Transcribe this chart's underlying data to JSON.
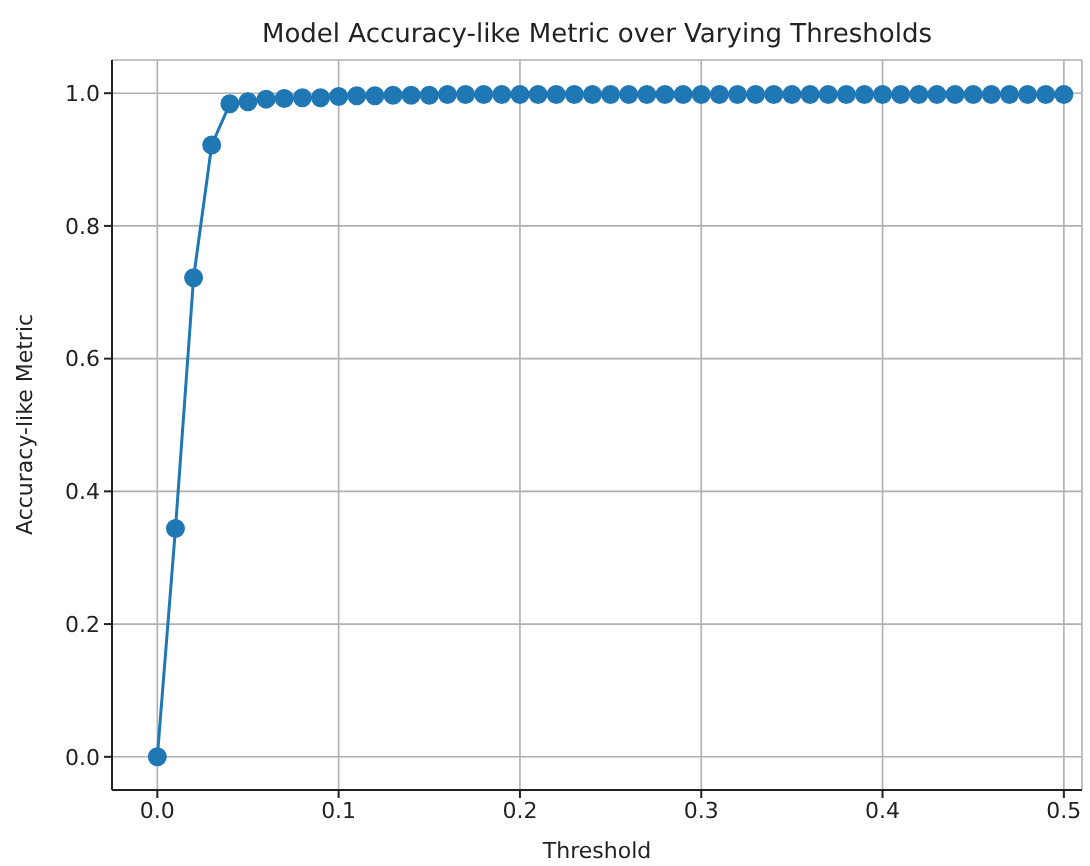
{
  "chart_data": {
    "type": "line",
    "title": "Model Accuracy-like Metric over Varying Thresholds",
    "xlabel": "Threshold",
    "ylabel": "Accuracy-like Metric",
    "x": [
      0,
      0.01,
      0.02,
      0.03,
      0.04,
      0.05,
      0.06,
      0.07,
      0.08,
      0.09,
      0.1,
      0.11,
      0.12,
      0.13,
      0.14,
      0.15,
      0.16,
      0.17,
      0.18,
      0.19,
      0.2,
      0.21,
      0.22,
      0.23,
      0.24,
      0.25,
      0.26,
      0.27,
      0.28,
      0.29,
      0.3,
      0.31,
      0.32,
      0.33,
      0.34,
      0.35,
      0.36,
      0.37,
      0.38,
      0.39,
      0.4,
      0.41,
      0.42,
      0.43,
      0.44,
      0.45,
      0.46,
      0.47,
      0.48,
      0.49,
      0.5
    ],
    "series": [
      {
        "color": "#1f77b4",
        "values": [
          0,
          0.344,
          0.722,
          0.922,
          0.984,
          0.987,
          0.991,
          0.992,
          0.993,
          0.993,
          0.995,
          0.996,
          0.996,
          0.997,
          0.997,
          0.997,
          0.998,
          0.998,
          0.998,
          0.998,
          0.998,
          0.998,
          0.998,
          0.998,
          0.998,
          0.998,
          0.998,
          0.998,
          0.998,
          0.998,
          0.998,
          0.998,
          0.998,
          0.998,
          0.998,
          0.998,
          0.998,
          0.998,
          0.998,
          0.998,
          0.998,
          0.998,
          0.998,
          0.998,
          0.998,
          0.998,
          0.998,
          0.998,
          0.998,
          0.998,
          0.998
        ]
      }
    ],
    "xlim": [
      -0.025,
      0.51
    ],
    "xticks": [
      {
        "value": 0,
        "label": "0.0"
      },
      0.1,
      0.2,
      0.3,
      0.4,
      0.5
    ],
    "ylim": [
      -0.05,
      1.05
    ],
    "yticks": [
      {
        "value": 0,
        "label": "0.0"
      },
      0.2,
      0.4,
      0.6,
      0.8,
      {
        "value": 1,
        "label": "1.0"
      }
    ],
    "grid": true,
    "marker": "circle",
    "line_style": "solid",
    "legend": false
  }
}
